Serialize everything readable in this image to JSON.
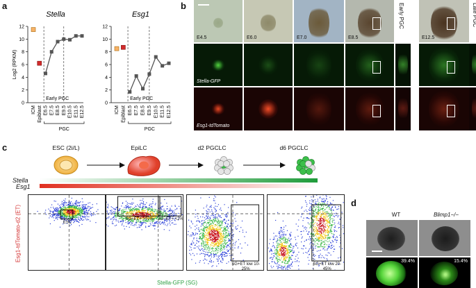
{
  "panels": {
    "a": "a",
    "b": "b",
    "c": "c",
    "d": "d"
  },
  "chart_data": [
    {
      "type": "line",
      "title": "Stella",
      "ylabel": "Log2 (RPKM)",
      "ylim": [
        0,
        12
      ],
      "yticks": [
        "0",
        "2",
        "4",
        "6",
        "8",
        "10",
        "12"
      ],
      "categories": [
        "ICM",
        "Epiblast",
        "E6.5",
        "E7.5",
        "E8.5",
        "E9.5",
        "E10.5",
        "E11.5",
        "E12.5"
      ],
      "values": [
        11.5,
        6.2,
        4.6,
        8.0,
        9.6,
        10.0,
        9.9,
        10.5,
        10.5
      ],
      "bracket": "Early PGC",
      "group_label": "PGC"
    },
    {
      "type": "line",
      "title": "Esg1",
      "ylabel": "",
      "ylim": [
        0,
        12
      ],
      "yticks": [
        "0",
        "2",
        "4",
        "6",
        "8",
        "10",
        "12"
      ],
      "categories": [
        "ICM",
        "Epiblast",
        "E6.5",
        "E7.5",
        "E8.5",
        "E9.5",
        "E10.5",
        "E11.5",
        "E12.5"
      ],
      "values": [
        8.5,
        8.7,
        1.7,
        4.2,
        2.2,
        4.5,
        7.2,
        5.8,
        6.2
      ],
      "bracket": "Early PGC",
      "group_label": "PGC"
    }
  ],
  "b": {
    "stages": [
      "E4.5",
      "E6.0",
      "E7.0",
      "E8.5",
      "E12.5"
    ],
    "row_labels": {
      "gfp": "Stella-GFP",
      "td": "Esg1-tdTomato"
    },
    "side": {
      "early": "Early PGC",
      "late": "Late PGC"
    }
  },
  "c": {
    "stages": [
      "ESC (2i/L)",
      "EpiLC",
      "d2 PGCLC",
      "d6 PGCLC"
    ],
    "bar_labels": {
      "stella": "Stella",
      "esg1": "Esg1"
    },
    "ylabel": "Esg1-tdTomato-d2 (ET)",
    "xlabel": "Stella-GFP (SG)",
    "plots": [
      {
        "gates": [
          "ESC"
        ]
      },
      {
        "gates": [
          "SG+ET+ >97%",
          "SG−ET+ <2%"
        ]
      },
      {
        "gates": [
          "SG+ET low 10-25%"
        ]
      },
      {
        "gates": [
          "SG+ET low 20-45%"
        ]
      }
    ]
  },
  "d": {
    "labels": [
      "WT",
      "Blimp1−/−"
    ],
    "pcts": [
      "39.4%",
      "15.4%"
    ]
  },
  "colors": {
    "red": "#d22b2b",
    "green": "#2ea043",
    "orange": "#f7b267"
  }
}
